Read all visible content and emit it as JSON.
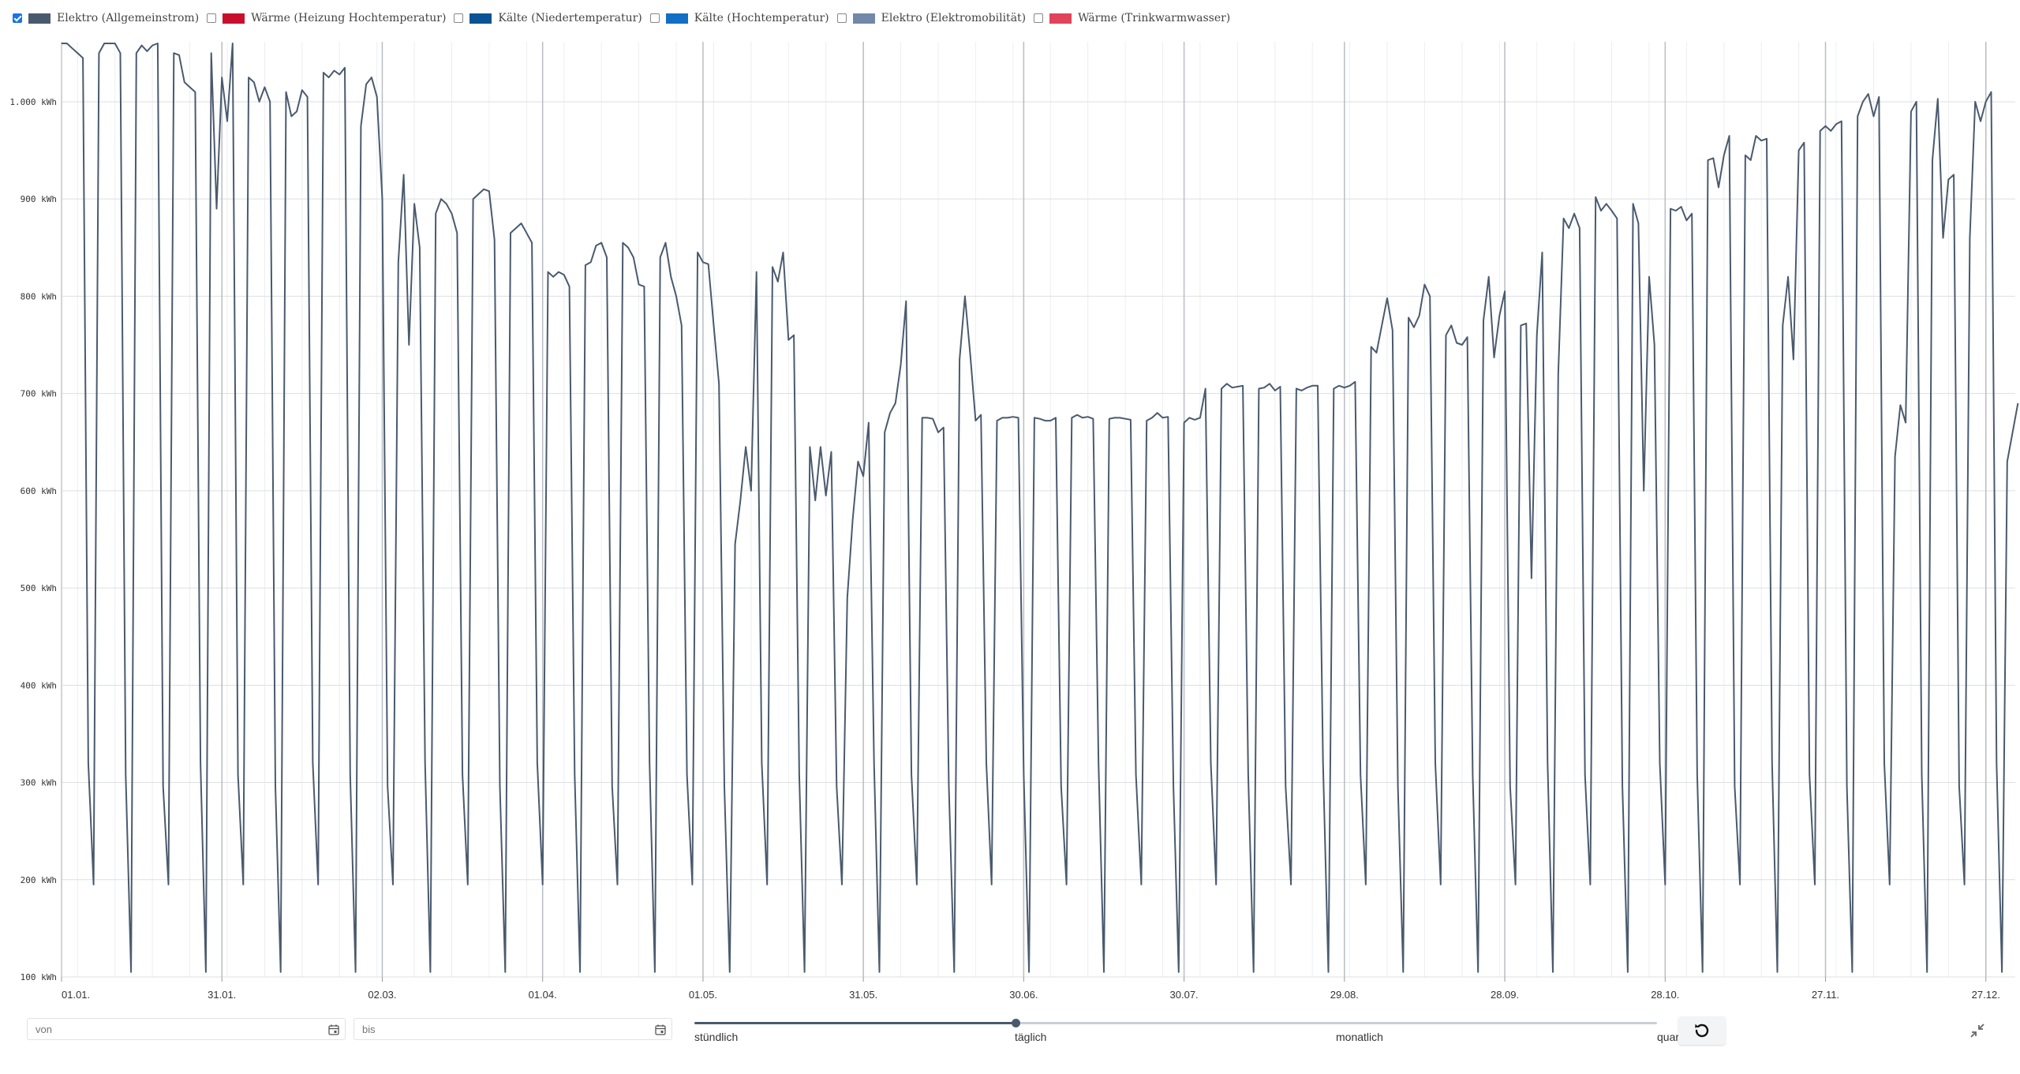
{
  "legend": {
    "items": [
      {
        "label": "Elektro (Allgemeinstrom)",
        "color": "#4a5a6e",
        "checked": true
      },
      {
        "label": "Wärme (Heizung Hochtemperatur)",
        "color": "#c8102e",
        "checked": false
      },
      {
        "label": "Kälte (Niedertemperatur)",
        "color": "#0b5394",
        "checked": false
      },
      {
        "label": "Kälte (Hochtemperatur)",
        "color": "#1170c4",
        "checked": false
      },
      {
        "label": "Elektro (Elektromobilität)",
        "color": "#7388a8",
        "checked": false
      },
      {
        "label": "Wärme (Trinkwarmwasser)",
        "color": "#e0435a",
        "checked": false
      }
    ]
  },
  "chart_data": {
    "type": "line",
    "ylim": [
      100,
      1060
    ],
    "y_ticks": [
      "1.000 kWh",
      "900 kWh",
      "800 kWh",
      "700 kWh",
      "600 kWh",
      "500 kWh",
      "400 kWh",
      "300 kWh",
      "200 kWh",
      "100 kWh"
    ],
    "y_tick_values": [
      1000,
      900,
      800,
      700,
      600,
      500,
      400,
      300,
      200,
      100
    ],
    "x_ticks": [
      "01.01.",
      "31.01.",
      "02.03.",
      "01.04.",
      "01.05.",
      "31.05.",
      "30.06.",
      "30.07.",
      "29.08.",
      "28.09.",
      "28.10.",
      "27.11.",
      "27.12."
    ],
    "x_tick_days": [
      0,
      30,
      60,
      90,
      120,
      150,
      180,
      210,
      240,
      270,
      300,
      330,
      360
    ],
    "grid": true,
    "series": [
      {
        "name": "Elektro (Allgemeinstrom)",
        "color": "#4a5a6e",
        "weekday_values": [
          [
            1060,
            1060,
            1055,
            1050,
            1045
          ],
          [
            1050,
            1068,
            1068,
            1062,
            1050
          ],
          [
            1050,
            1058,
            1052,
            1058,
            1062
          ],
          [
            1050,
            1048,
            1020,
            1015,
            1010
          ],
          [
            1050,
            890,
            1025,
            980,
            1065
          ],
          [
            1025,
            1020,
            1000,
            1015,
            1000
          ],
          [
            1010,
            985,
            990,
            1012,
            1005
          ],
          [
            1030,
            1025,
            1032,
            1028,
            1035
          ],
          [
            975,
            1018,
            1025,
            1005,
            900
          ],
          [
            835,
            925,
            750,
            895,
            850
          ],
          [
            885,
            900,
            895,
            885,
            865
          ],
          [
            900,
            905,
            910,
            908,
            858
          ],
          [
            865,
            870,
            875,
            865,
            855
          ],
          [
            825,
            820,
            825,
            822,
            810
          ],
          [
            832,
            835,
            852,
            855,
            840
          ],
          [
            855,
            850,
            840,
            812,
            810
          ],
          [
            840,
            855,
            820,
            800,
            770
          ],
          [
            845,
            835,
            833,
            770,
            710
          ],
          [
            545,
            590,
            645,
            600,
            825
          ],
          [
            830,
            815,
            845,
            755,
            760
          ],
          [
            645,
            590,
            645,
            595,
            640
          ],
          [
            490,
            570,
            630,
            615,
            670
          ],
          [
            660,
            680,
            690,
            730,
            795
          ],
          [
            675,
            675,
            674,
            660,
            665
          ],
          [
            735,
            800,
            740,
            672,
            678
          ],
          [
            672,
            675,
            675,
            676,
            675
          ],
          [
            675,
            674,
            672,
            672,
            675
          ],
          [
            675,
            678,
            675,
            676,
            674
          ],
          [
            674,
            675,
            675,
            674,
            673
          ],
          [
            672,
            675,
            680,
            675,
            676
          ],
          [
            670,
            675,
            673,
            675,
            705
          ],
          [
            705,
            710,
            706,
            707,
            708
          ],
          [
            705,
            706,
            710,
            703,
            707
          ],
          [
            705,
            703,
            706,
            708,
            708
          ],
          [
            705,
            708,
            706,
            708,
            712
          ],
          [
            748,
            742,
            770,
            798,
            765
          ],
          [
            778,
            768,
            780,
            812,
            800
          ],
          [
            760,
            770,
            752,
            750,
            758
          ],
          [
            775,
            820,
            737,
            780,
            805
          ],
          [
            770,
            772,
            510,
            760,
            845
          ],
          [
            720,
            880,
            870,
            885,
            870
          ],
          [
            902,
            888,
            895,
            888,
            880
          ],
          [
            895,
            875,
            600,
            820,
            750
          ],
          [
            890,
            888,
            892,
            878,
            885
          ],
          [
            940,
            942,
            912,
            945,
            965
          ],
          [
            945,
            940,
            965,
            960,
            962
          ],
          [
            770,
            820,
            735,
            950,
            958
          ],
          [
            970,
            975,
            970,
            977,
            980
          ],
          [
            985,
            1000,
            1008,
            985,
            1005
          ],
          [
            635,
            688,
            670,
            990,
            1000
          ],
          [
            940,
            1003,
            860,
            920,
            925
          ],
          [
            860,
            1000,
            980,
            1000,
            1010
          ],
          [
            630,
            660,
            690
          ]
        ]
      }
    ]
  },
  "controls": {
    "from_placeholder": "von",
    "to_placeholder": "bis",
    "resolution_options": [
      "stündlich",
      "täglich",
      "monatlich",
      "quartalsweise"
    ],
    "resolution_selected": "täglich"
  }
}
